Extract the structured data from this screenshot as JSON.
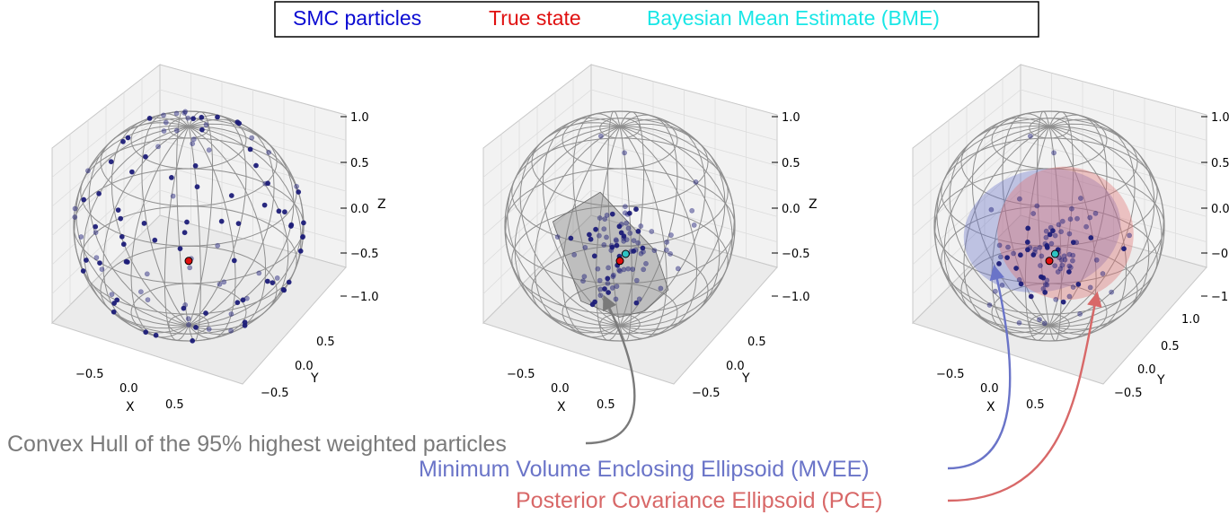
{
  "chart_data": {
    "type": "scatter",
    "legend": {
      "placement": "top-center",
      "items": [
        {
          "label": "SMC particles",
          "color": "#0a0ad2"
        },
        {
          "label": "True state",
          "color": "#e01010"
        },
        {
          "label": "Bayesian Mean Estimate (BME)",
          "color": "#19e6e6"
        }
      ]
    },
    "colors": {
      "particle": "#1c1c78",
      "true_state": "#e01010",
      "bme": "#2ec4c4",
      "sphere_wire": "#8f8f8f",
      "hull": "#808080",
      "mvee": "#6a74c8",
      "pce": "#e07070"
    },
    "axes": {
      "xlabel": "X",
      "ylabel": "Y",
      "zlabel": "Z",
      "xlim": [
        -1,
        1
      ],
      "ylim": [
        -1,
        1
      ],
      "zlim": [
        -1,
        1
      ],
      "x_ticks": [
        "−0.5",
        "0.0",
        "0.5"
      ],
      "y_ticks": [
        "−0.5",
        "0.0",
        "0.5"
      ],
      "y_ticks_panel3": [
        "−0.5",
        "0.0",
        "0.5",
        "1.0"
      ],
      "z_ticks": [
        "−1.0",
        "−0.5",
        "0.0",
        "0.5",
        "1.0"
      ]
    },
    "panels": [
      {
        "overlay": "none",
        "true_state": [
          0.0,
          0.0,
          -0.35
        ],
        "bme": null,
        "particles": "uniform scatter on unit sphere, 110 points"
      },
      {
        "overlay": "convex_hull",
        "true_state": [
          0.0,
          0.0,
          -0.35
        ],
        "bme": [
          0.1,
          0.0,
          -0.33
        ],
        "particles": "concentrated cluster near true state, 90 points"
      },
      {
        "overlay": "ellipsoids",
        "true_state": [
          0.0,
          0.0,
          -0.35
        ],
        "bme": [
          0.1,
          0.0,
          -0.33
        ],
        "particles": "concentrated cluster near true state, 90 points"
      }
    ]
  },
  "annotations": {
    "hull": {
      "text": "Convex Hull of the 95% highest weighted particles",
      "color": "#7a7a7a"
    },
    "mvee": {
      "text": "Minimum Volume Enclosing Ellipsoid (MVEE)",
      "color": "#6a74c8"
    },
    "pce": {
      "text": "Posterior Covariance Ellipsoid (PCE)",
      "color": "#d86868"
    }
  }
}
